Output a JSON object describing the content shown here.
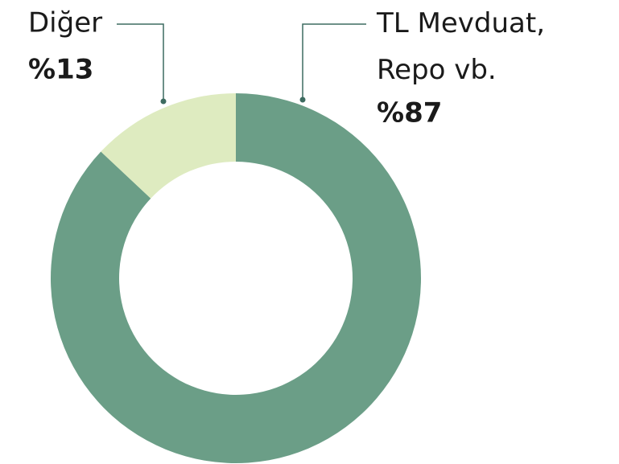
{
  "chart_data": {
    "type": "donut",
    "categories": [
      "TL Mevduat, Repo vb.",
      "Diğer"
    ],
    "values": [
      87,
      13
    ],
    "value_labels": [
      "%87",
      "%13"
    ],
    "colors": [
      "#6b9e87",
      "#deebc0"
    ]
  }
}
